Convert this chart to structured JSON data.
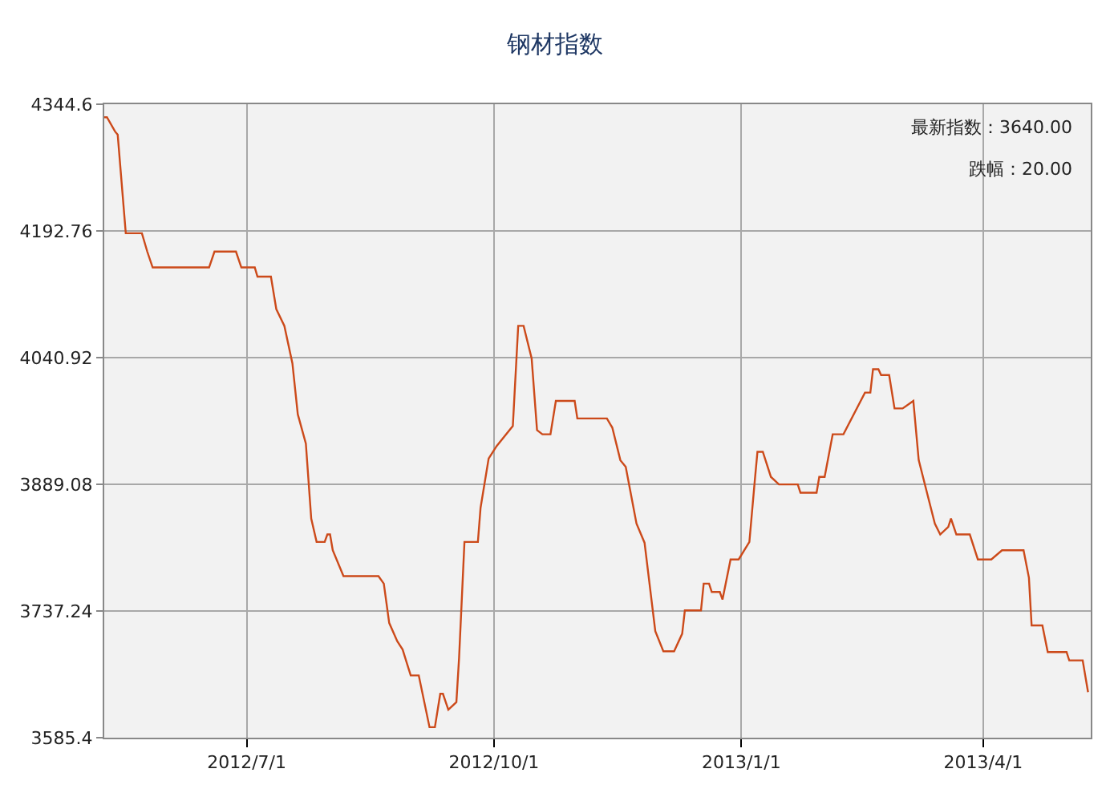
{
  "chart_data": {
    "type": "line",
    "title": "钢材指数",
    "x": [
      "2012-05-09",
      "2012-05-10",
      "2012-05-13",
      "2012-05-14",
      "2012-05-17",
      "2012-05-23",
      "2012-05-25",
      "2012-05-27",
      "2012-06-17",
      "2012-06-19",
      "2012-06-27",
      "2012-06-29",
      "2012-07-04",
      "2012-07-05",
      "2012-07-10",
      "2012-07-12",
      "2012-07-15",
      "2012-07-18",
      "2012-07-20",
      "2012-07-23",
      "2012-07-25",
      "2012-07-27",
      "2012-07-30",
      "2012-07-31",
      "2012-08-01",
      "2012-08-02",
      "2012-08-06",
      "2012-08-19",
      "2012-08-21",
      "2012-08-23",
      "2012-08-26",
      "2012-08-28",
      "2012-08-31",
      "2012-09-03",
      "2012-09-07",
      "2012-09-09",
      "2012-09-11",
      "2012-09-12",
      "2012-09-14",
      "2012-09-17",
      "2012-09-18",
      "2012-09-20",
      "2012-09-25",
      "2012-09-26",
      "2012-09-29",
      "2012-10-02",
      "2012-10-08",
      "2012-10-10",
      "2012-10-12",
      "2012-10-15",
      "2012-10-17",
      "2012-10-19",
      "2012-10-22",
      "2012-10-24",
      "2012-10-31",
      "2012-11-01",
      "2012-11-12",
      "2012-11-14",
      "2012-11-17",
      "2012-11-19",
      "2012-11-23",
      "2012-11-26",
      "2012-11-30",
      "2012-12-03",
      "2012-12-07",
      "2012-12-10",
      "2012-12-11",
      "2012-12-17",
      "2012-12-18",
      "2012-12-20",
      "2012-12-21",
      "2012-12-24",
      "2012-12-25",
      "2012-12-28",
      "2012-12-31",
      "2013-01-04",
      "2013-01-06",
      "2013-01-07",
      "2013-01-09",
      "2013-01-12",
      "2013-01-15",
      "2013-01-22",
      "2013-01-23",
      "2013-01-29",
      "2013-01-30",
      "2013-02-01",
      "2013-02-04",
      "2013-02-08",
      "2013-02-16",
      "2013-02-18",
      "2013-02-19",
      "2013-02-21",
      "2013-02-22",
      "2013-02-25",
      "2013-02-27",
      "2013-03-02",
      "2013-03-06",
      "2013-03-08",
      "2013-03-11",
      "2013-03-14",
      "2013-03-16",
      "2013-03-19",
      "2013-03-20",
      "2013-03-22",
      "2013-03-27",
      "2013-03-30",
      "2013-04-04",
      "2013-04-08",
      "2013-04-16",
      "2013-04-18",
      "2013-04-19",
      "2013-04-23",
      "2013-04-25",
      "2013-05-02",
      "2013-05-03",
      "2013-05-08",
      "2013-05-10"
    ],
    "series": [
      {
        "color": "#cc4a1a",
        "values": [
          4329,
          4329,
          4312,
          4308,
          4190,
          4190,
          4168,
          4149,
          4149,
          4168,
          4168,
          4149,
          4149,
          4138,
          4138,
          4099,
          4079,
          4034,
          3973,
          3938,
          3848,
          3820,
          3820,
          3829,
          3829,
          3810,
          3779,
          3779,
          3770,
          3723,
          3701,
          3691,
          3660,
          3660,
          3598,
          3598,
          3638,
          3638,
          3619,
          3628,
          3681,
          3820,
          3820,
          3861,
          3920,
          3935,
          3959,
          4079,
          4079,
          4040,
          3954,
          3949,
          3949,
          3989,
          3989,
          3968,
          3968,
          3957,
          3918,
          3910,
          3842,
          3819,
          3713,
          3689,
          3689,
          3710,
          3738,
          3738,
          3770,
          3770,
          3760,
          3760,
          3751,
          3799,
          3799,
          3820,
          3893,
          3928,
          3928,
          3898,
          3889,
          3889,
          3879,
          3879,
          3898,
          3898,
          3949,
          3949,
          3999,
          3999,
          4027,
          4027,
          4020,
          4020,
          3980,
          3980,
          3989,
          3918,
          3880,
          3842,
          3829,
          3838,
          3848,
          3829,
          3829,
          3799,
          3799,
          3810,
          3810,
          3777,
          3720,
          3720,
          3688,
          3688,
          3678,
          3678,
          3640
        ]
      }
    ],
    "xlim": [
      "2012-05-09",
      "2013-05-11"
    ],
    "xticks": [
      {
        "value": "2012-07-01",
        "label": "2012/7/1"
      },
      {
        "value": "2012-10-01",
        "label": "2012/10/1"
      },
      {
        "value": "2013-01-01",
        "label": "2013/1/1"
      },
      {
        "value": "2013-04-01",
        "label": "2013/4/1"
      }
    ],
    "ylim": [
      3585.4,
      4344.6
    ],
    "yticks": [
      3585.4,
      3737.24,
      3889.08,
      4040.92,
      4192.76,
      4344.6
    ],
    "grid": true,
    "marker": "none",
    "line_style": "solid",
    "annotations": [
      "最新指数：3640.00",
      "跌幅：20.00"
    ]
  }
}
